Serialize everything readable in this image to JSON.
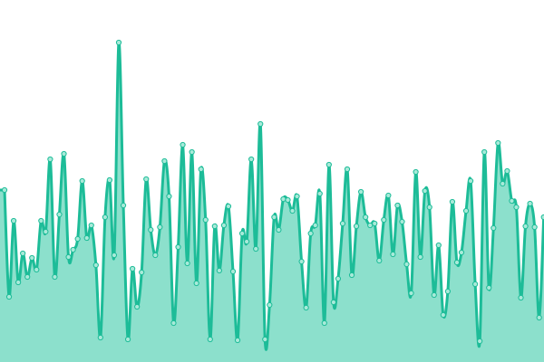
{
  "chart_data": {
    "type": "area",
    "color": "#1dbc98",
    "fill_color": "#8ce0cc",
    "marker_fill": "#a8ead9",
    "ylim": [
      0,
      400
    ],
    "values": [
      190,
      72,
      156,
      88,
      120,
      94,
      115,
      102,
      156,
      144,
      224,
      94,
      163,
      230,
      116,
      124,
      136,
      200,
      137,
      151,
      107,
      27,
      160,
      201,
      118,
      353,
      173,
      25,
      103,
      61,
      99,
      202,
      146,
      118,
      149,
      222,
      183,
      43,
      127,
      240,
      109,
      232,
      87,
      213,
      157,
      25,
      150,
      101,
      151,
      172,
      100,
      24,
      142,
      133,
      224,
      125,
      263,
      25,
      63,
      160,
      146,
      180,
      179,
      167,
      183,
      111,
      60,
      142,
      151,
      186,
      43,
      218,
      66,
      92,
      153,
      213,
      96,
      150,
      188,
      160,
      151,
      153,
      112,
      157,
      184,
      119,
      173,
      155,
      108,
      76,
      210,
      116,
      189,
      171,
      74,
      129,
      52,
      78,
      177,
      110,
      121,
      167,
      200,
      86,
      23,
      232,
      82,
      148,
      242,
      197,
      211,
      178,
      171,
      71,
      150,
      175,
      149,
      49,
      160
    ]
  }
}
